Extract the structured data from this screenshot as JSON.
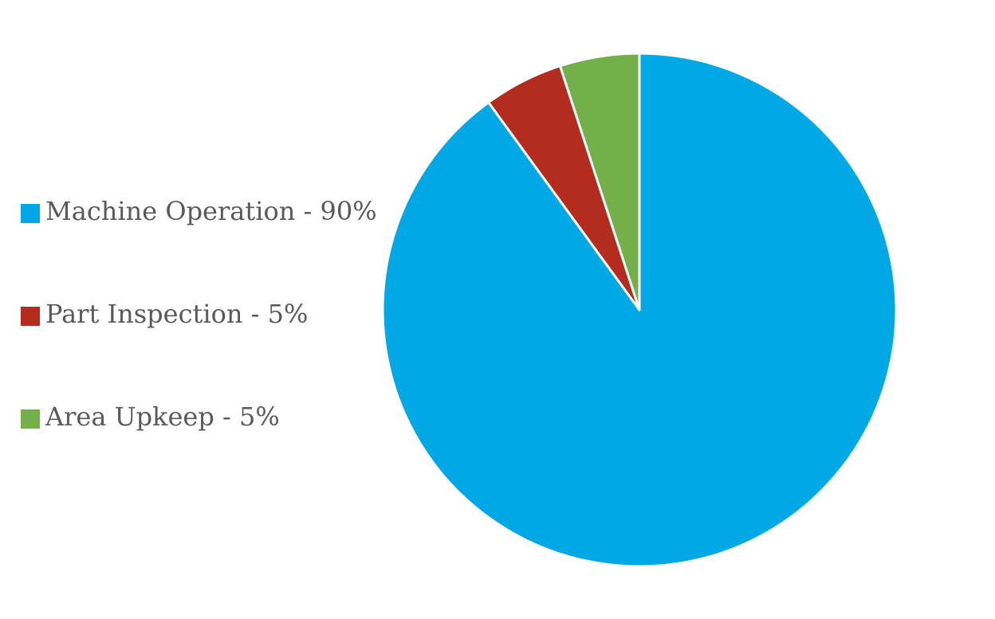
{
  "chart_data": {
    "type": "pie",
    "slices": [
      {
        "label": "Machine Operation - 90%",
        "value": 90,
        "color": "#00A8E6"
      },
      {
        "label": "Part Inspection - 5%",
        "value": 5,
        "color": "#B32C1D"
      },
      {
        "label": "Area Upkeep - 5%",
        "value": 5,
        "color": "#74B04A"
      }
    ],
    "start_angle_deg": 0,
    "direction": "clockwise",
    "slice_border_color": "#FFFFFF",
    "legend_position": "left"
  }
}
